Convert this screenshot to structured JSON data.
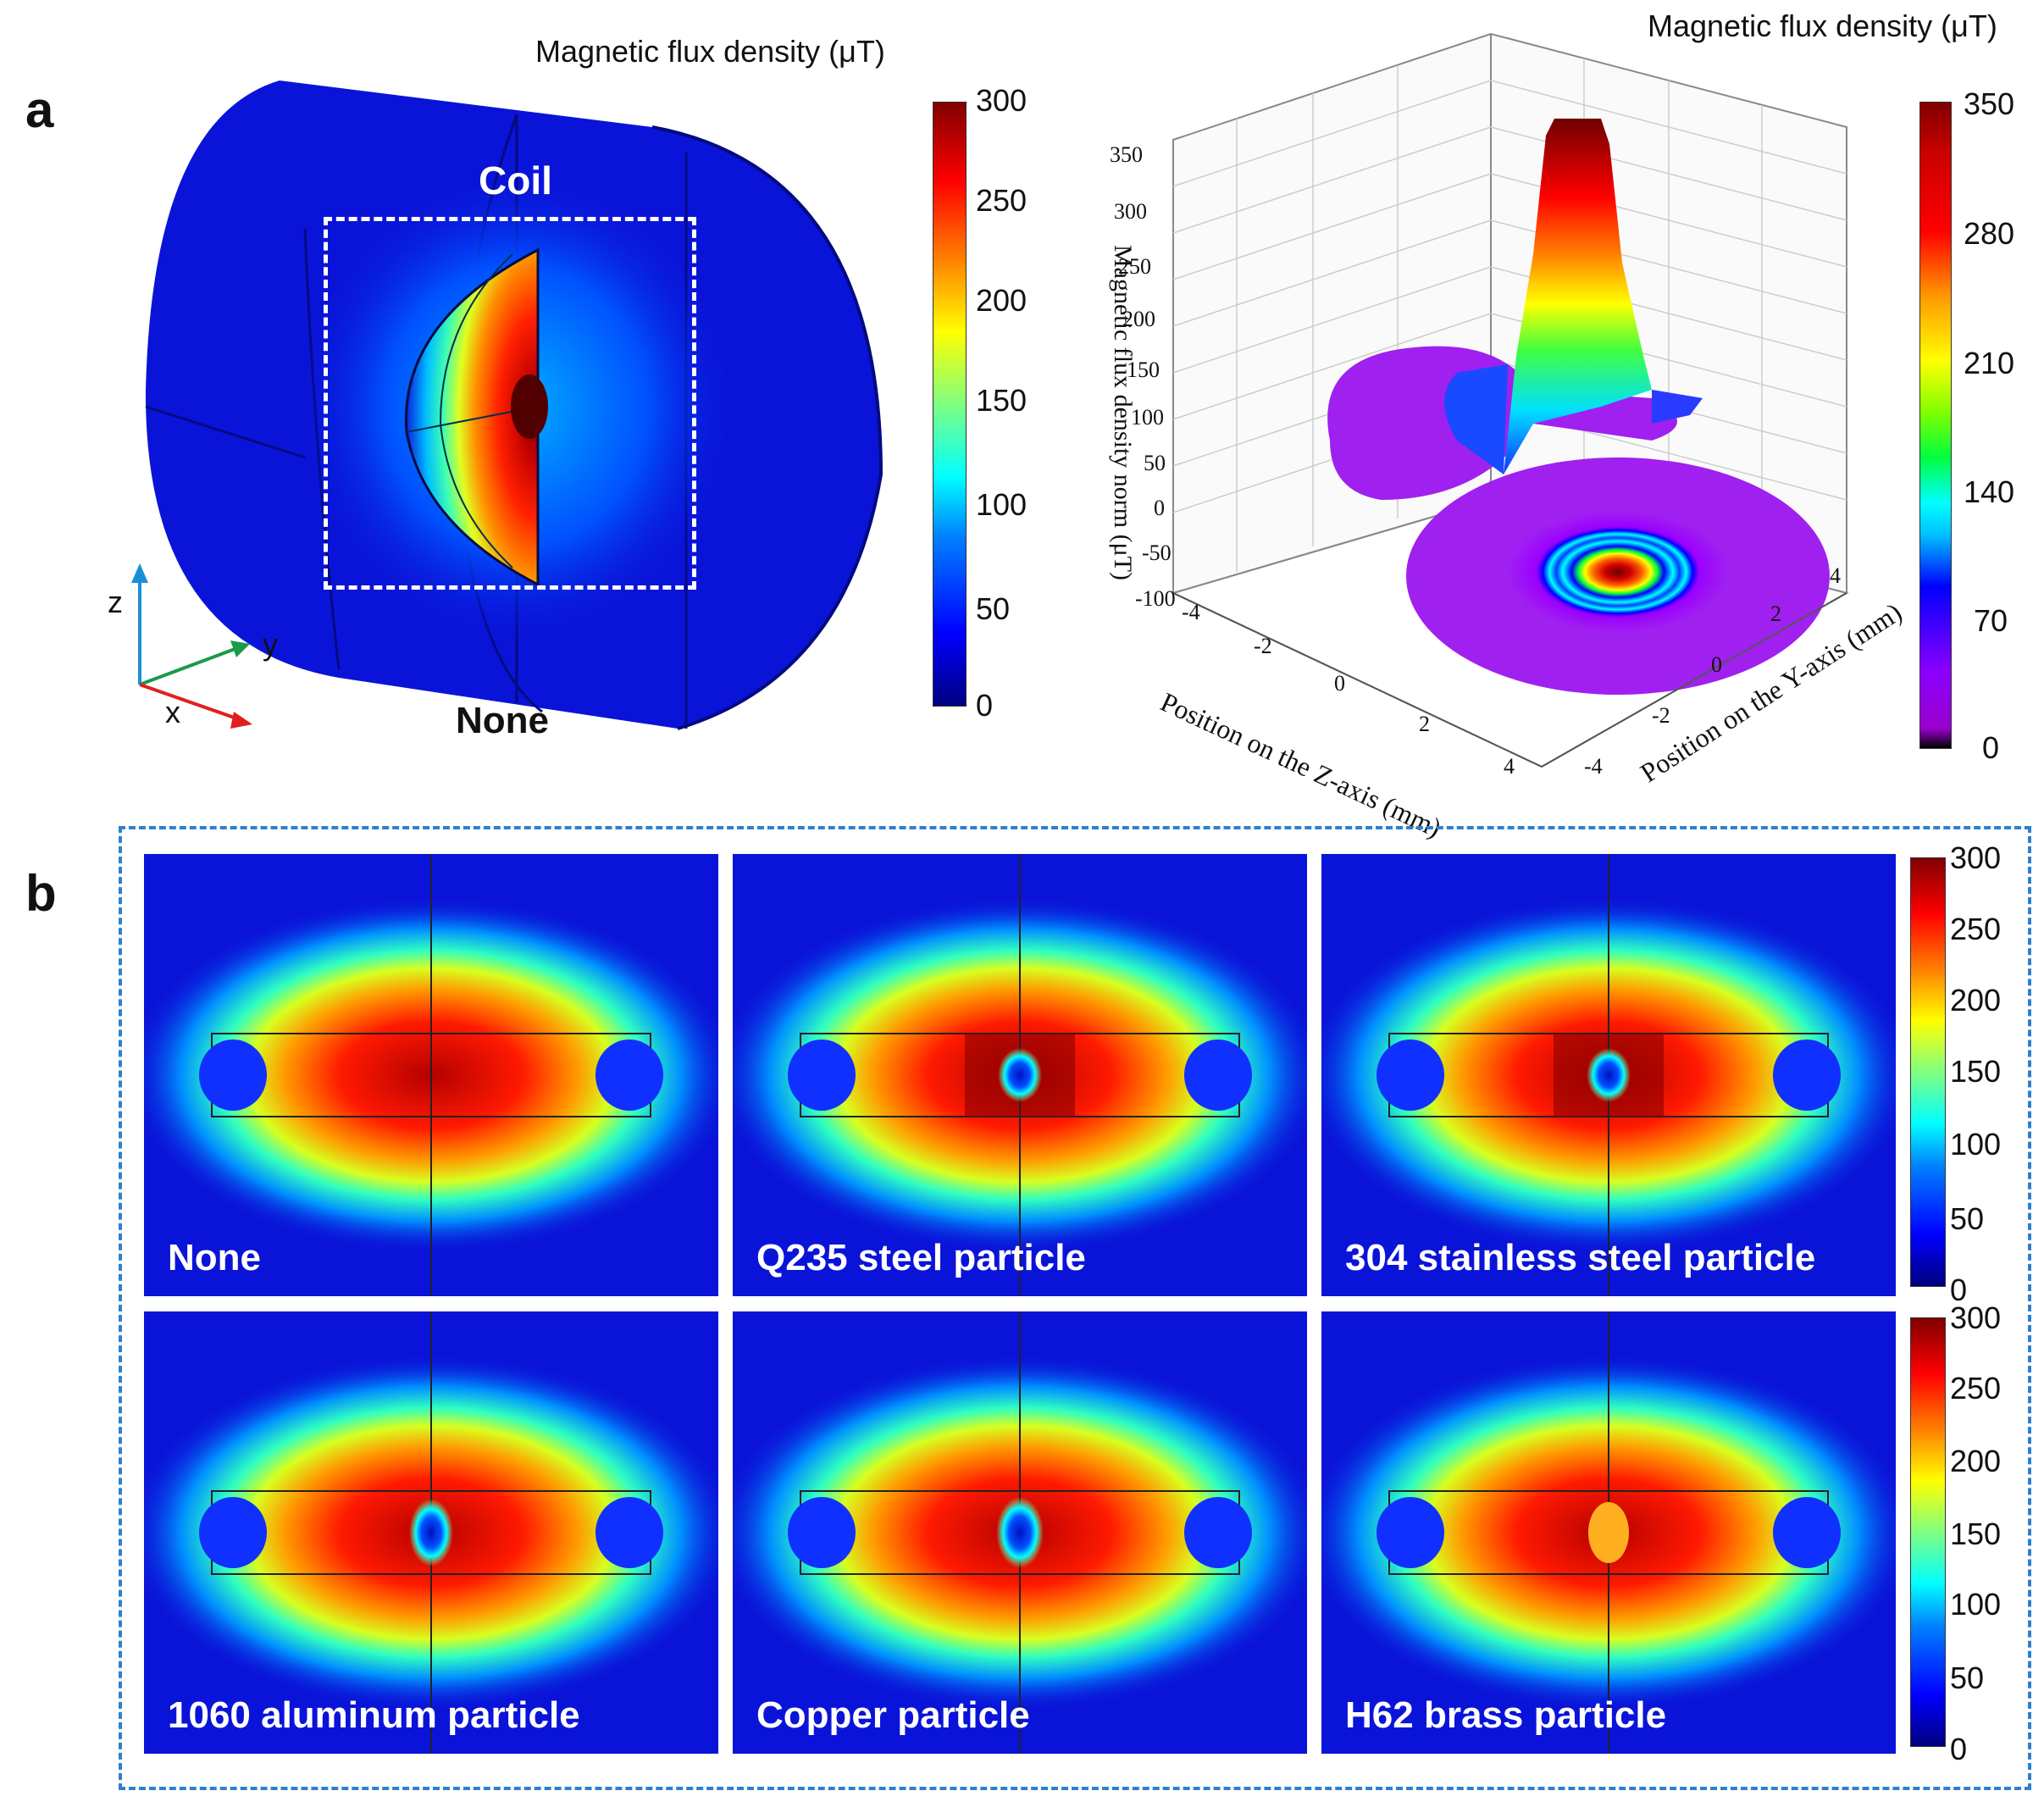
{
  "panel_a": {
    "letter": "a",
    "colorbar1_title": "Magnetic flux density (μT)",
    "colorbar1_ticks": [
      "300",
      "250",
      "200",
      "150",
      "100",
      "50",
      "0"
    ],
    "coil_label": "Coil",
    "none_label": "None",
    "axes": {
      "z": "z",
      "y": "y",
      "x": "x"
    },
    "colorbar2_title": "Magnetic flux density (μT)",
    "colorbar2_ticks": [
      "350",
      "280",
      "210",
      "140",
      "70",
      "0"
    ],
    "plot3d": {
      "zaxis_label": "Magnetic flux density norm (μT)",
      "zaxis_ticks": [
        "350",
        "300",
        "250",
        "200",
        "150",
        "100",
        "50",
        "0",
        "-50",
        "-100"
      ],
      "xaxis_label": "Position on the Z-axis (mm)",
      "xaxis_ticks": [
        "-4",
        "-2",
        "0",
        "2",
        "4"
      ],
      "yaxis_label": "Position on the Y-axis (mm)",
      "yaxis_ticks": [
        "4",
        "2",
        "0",
        "-2",
        "-4"
      ]
    }
  },
  "panel_b": {
    "letter": "b",
    "panels": [
      {
        "label": "None"
      },
      {
        "label": "Q235 steel particle"
      },
      {
        "label": "304 stainless steel particle"
      },
      {
        "label": "1060 aluminum particle"
      },
      {
        "label": "Copper particle"
      },
      {
        "label": "H62 brass particle"
      }
    ],
    "colorbar_ticks": [
      "300",
      "250",
      "200",
      "150",
      "100",
      "50",
      "0"
    ]
  },
  "colors": {
    "dash": "#2f7fd0",
    "field_bg": "#0a14d8"
  }
}
